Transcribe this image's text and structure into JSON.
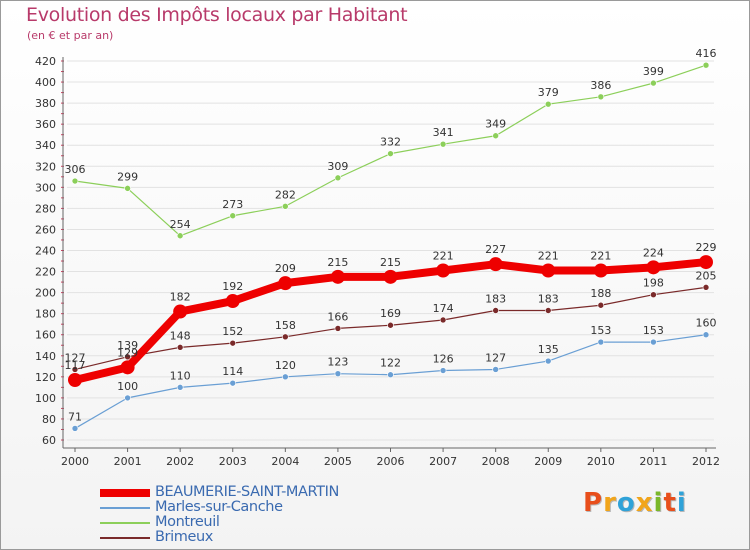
{
  "header": {
    "title": "Evolution des Impôts locaux par Habitant",
    "subtitle": "(en € et par an)"
  },
  "logo": {
    "letters": [
      "P",
      "r",
      "o",
      "x",
      "i",
      "t",
      "i"
    ],
    "colors": [
      "#e84e1b",
      "#f1a51b",
      "#2fa2d8",
      "#f1a51b",
      "#7ab829",
      "#e84e1b",
      "#2fa2d8"
    ]
  },
  "chart_data": {
    "type": "line",
    "title": "Evolution des Impôts locaux par Habitant",
    "subtitle": "(en € et par an)",
    "xlabel": "",
    "ylabel": "",
    "x": [
      "2000",
      "2001",
      "2002",
      "2003",
      "2004",
      "2005",
      "2006",
      "2007",
      "2008",
      "2009",
      "2010",
      "2011",
      "2012"
    ],
    "ylim": [
      60,
      420
    ],
    "yticks": [
      60,
      80,
      100,
      120,
      140,
      160,
      180,
      200,
      220,
      240,
      260,
      280,
      300,
      320,
      340,
      360,
      380,
      400,
      420
    ],
    "grid": true,
    "legend_position": "bottom-left",
    "series": [
      {
        "name": "BEAUMERIE-SAINT-MARTIN",
        "values": [
          117,
          129,
          182,
          192,
          209,
          215,
          215,
          221,
          227,
          221,
          221,
          224,
          229
        ],
        "labels": [
          "117",
          "129",
          "182",
          "192",
          "209",
          "215",
          "215",
          "221",
          "227",
          "221",
          "221",
          "224",
          "229"
        ],
        "color": "#ee0000",
        "emphasis": true
      },
      {
        "name": "Marles-sur-Canche",
        "values": [
          71,
          100,
          110,
          114,
          120,
          123,
          122,
          126,
          127,
          135,
          153,
          153,
          160
        ],
        "labels": [
          "71",
          "100",
          "110",
          "114",
          "120",
          "123",
          "122",
          "126",
          "127",
          "135",
          "153",
          "153",
          "160"
        ],
        "color": "#6a9fd4",
        "emphasis": false
      },
      {
        "name": "Montreuil",
        "values": [
          306,
          299,
          254,
          273,
          282,
          309,
          332,
          341,
          349,
          379,
          386,
          399,
          416
        ],
        "labels": [
          "306",
          "299",
          "254",
          "273",
          "282",
          "309",
          "332",
          "341",
          "349",
          "379",
          "386",
          "399",
          "416"
        ],
        "color": "#8ccf5a",
        "emphasis": false
      },
      {
        "name": "Brimeux",
        "values": [
          127,
          139,
          148,
          152,
          158,
          166,
          169,
          174,
          183,
          183,
          188,
          198,
          205
        ],
        "labels": [
          "127",
          "139",
          "148",
          "152",
          "158",
          "166",
          "169",
          "174",
          "183",
          "183",
          "188",
          "198",
          "205"
        ],
        "color": "#7a2a2a",
        "emphasis": false
      }
    ]
  }
}
